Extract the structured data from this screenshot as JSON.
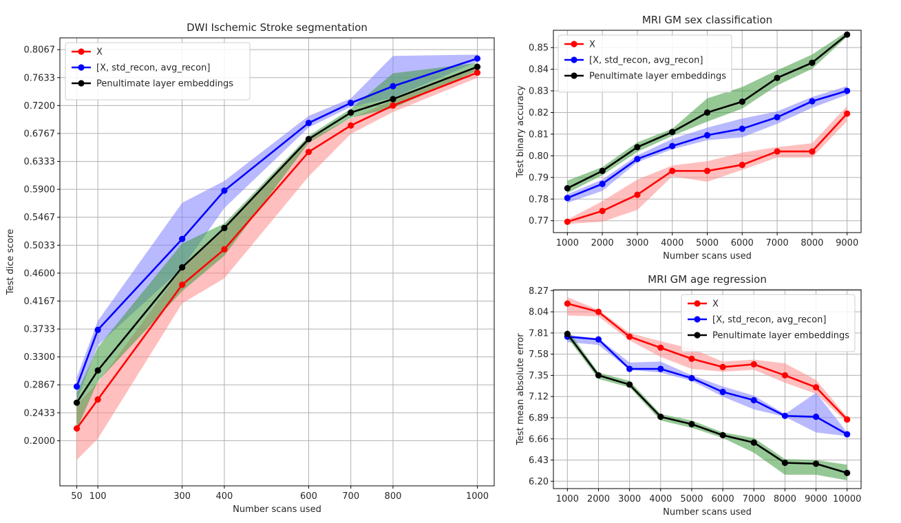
{
  "colors": {
    "X": "#ff0000",
    "std_recon": "#0000ff",
    "embeddings": "#000000",
    "band_X": "#ff8a8a",
    "band_std_recon": "#7f7fff",
    "band_embeddings": "#3f9a3f"
  },
  "chart_data": [
    {
      "type": "line",
      "title": "DWI Ischemic Stroke segmentation",
      "xlabel": "Number scans used",
      "ylabel": "Test dice score",
      "xlim": [
        10,
        1040
      ],
      "ylim": [
        0.13,
        0.825
      ],
      "xticks": [
        50,
        100,
        300,
        400,
        600,
        700,
        800,
        1000
      ],
      "xtick_labels": [
        "50",
        "100",
        "300",
        "400",
        "600",
        "700",
        "800",
        "1000"
      ],
      "yticks": [
        0.2,
        0.2433,
        0.2867,
        0.33,
        0.3733,
        0.4167,
        0.46,
        0.5033,
        0.5467,
        0.59,
        0.6333,
        0.6767,
        0.72,
        0.7633,
        0.8067
      ],
      "ytick_labels": [
        "0.2000",
        "0.2433",
        "0.2867",
        "0.3300",
        "0.3733",
        "0.4167",
        "0.4600",
        "0.5033",
        "0.5467",
        "0.5900",
        "0.6333",
        "0.6767",
        "0.7200",
        "0.7633",
        "0.8067"
      ],
      "grid": true,
      "legend": "top-left",
      "x": [
        50,
        100,
        300,
        400,
        600,
        700,
        800,
        1000
      ],
      "series": [
        {
          "name": "X",
          "color_key": "X",
          "band_key": "band_X",
          "values": [
            0.219,
            0.264,
            0.442,
            0.497,
            0.648,
            0.689,
            0.72,
            0.771
          ],
          "lower": [
            0.17,
            0.203,
            0.413,
            0.452,
            0.61,
            0.676,
            0.71,
            0.763
          ],
          "upper": [
            0.256,
            0.29,
            0.467,
            0.527,
            0.668,
            0.7,
            0.728,
            0.778
          ]
        },
        {
          "name": "[X, std_recon, avg_recon]",
          "color_key": "std_recon",
          "band_key": "band_std_recon",
          "values": [
            0.284,
            0.372,
            0.513,
            0.588,
            0.693,
            0.724,
            0.75,
            0.793
          ],
          "lower": [
            0.262,
            0.348,
            0.468,
            0.561,
            0.686,
            0.718,
            0.732,
            0.788
          ],
          "upper": [
            0.298,
            0.386,
            0.569,
            0.603,
            0.704,
            0.731,
            0.797,
            0.799
          ]
        },
        {
          "name": "Penultimate layer embeddings",
          "color_key": "embeddings",
          "band_key": "band_embeddings",
          "values": [
            0.259,
            0.309,
            0.469,
            0.53,
            0.668,
            0.709,
            0.73,
            0.78
          ],
          "lower": [
            0.218,
            0.292,
            0.432,
            0.487,
            0.662,
            0.701,
            0.716,
            0.774
          ],
          "upper": [
            0.274,
            0.345,
            0.506,
            0.537,
            0.673,
            0.715,
            0.77,
            0.786
          ]
        }
      ]
    },
    {
      "type": "line",
      "title": "MRI GM sex classification",
      "xlabel": "Number scans used",
      "ylabel": "Test binary accuracy",
      "xlim": [
        600,
        9400
      ],
      "ylim": [
        0.7645,
        0.858
      ],
      "xticks": [
        1000,
        2000,
        3000,
        4000,
        5000,
        6000,
        7000,
        8000,
        9000
      ],
      "xtick_labels": [
        "1000",
        "2000",
        "3000",
        "4000",
        "5000",
        "6000",
        "7000",
        "8000",
        "9000"
      ],
      "yticks": [
        0.77,
        0.78,
        0.79,
        0.8,
        0.81,
        0.82,
        0.83,
        0.84,
        0.85
      ],
      "ytick_labels": [
        "0.77",
        "0.78",
        "0.79",
        "0.80",
        "0.81",
        "0.82",
        "0.83",
        "0.84",
        "0.85"
      ],
      "grid": true,
      "legend": "top-left",
      "x": [
        1000,
        2000,
        3000,
        4000,
        5000,
        6000,
        7000,
        8000,
        9000
      ],
      "series": [
        {
          "name": "X",
          "color_key": "X",
          "band_key": "band_X",
          "values": [
            0.7695,
            0.7745,
            0.782,
            0.793,
            0.793,
            0.7958,
            0.802,
            0.802,
            0.8195
          ],
          "lower": [
            0.7685,
            0.7695,
            0.775,
            0.7905,
            0.788,
            0.7935,
            0.7992,
            0.7992,
            0.816
          ],
          "upper": [
            0.7705,
            0.779,
            0.789,
            0.7955,
            0.7975,
            0.8015,
            0.804,
            0.8058,
            0.823
          ]
        },
        {
          "name": "[X, std_recon, avg_recon]",
          "color_key": "std_recon",
          "band_key": "band_std_recon",
          "values": [
            0.7805,
            0.787,
            0.7985,
            0.8045,
            0.8095,
            0.8125,
            0.8178,
            0.8252,
            0.83
          ],
          "lower": [
            0.7782,
            0.7838,
            0.797,
            0.803,
            0.8072,
            0.8085,
            0.8148,
            0.8222,
            0.8282
          ],
          "upper": [
            0.7822,
            0.789,
            0.8002,
            0.8078,
            0.813,
            0.8172,
            0.8205,
            0.8272,
            0.8322
          ]
        },
        {
          "name": "Penultimate layer embeddings",
          "color_key": "embeddings",
          "band_key": "band_embeddings",
          "values": [
            0.785,
            0.793,
            0.804,
            0.811,
            0.82,
            0.825,
            0.836,
            0.843,
            0.856
          ],
          "lower": [
            0.7828,
            0.791,
            0.8018,
            0.8092,
            0.8158,
            0.8218,
            0.8325,
            0.8402,
            0.855
          ],
          "upper": [
            0.7885,
            0.7948,
            0.8062,
            0.8125,
            0.8265,
            0.8318,
            0.8395,
            0.8468,
            0.8575
          ]
        }
      ]
    },
    {
      "type": "line",
      "title": "MRI GM age regression",
      "xlabel": "Number scans used",
      "ylabel": "Test mean absolute error",
      "xlim": [
        550,
        10450
      ],
      "ylim": [
        6.12,
        8.28
      ],
      "xticks": [
        1000,
        2000,
        3000,
        4000,
        5000,
        6000,
        7000,
        8000,
        9000,
        10000
      ],
      "xtick_labels": [
        "1000",
        "2000",
        "3000",
        "4000",
        "5000",
        "6000",
        "7000",
        "8000",
        "9000",
        "10000"
      ],
      "yticks": [
        6.2,
        6.43,
        6.66,
        6.89,
        7.12,
        7.35,
        7.58,
        7.81,
        8.04,
        8.27
      ],
      "ytick_labels": [
        "6.20",
        "6.43",
        "6.66",
        "6.89",
        "7.12",
        "7.35",
        "7.58",
        "7.81",
        "8.04",
        "8.27"
      ],
      "grid": true,
      "legend": "top-right",
      "x": [
        1000,
        2000,
        3000,
        4000,
        5000,
        6000,
        7000,
        8000,
        9000,
        10000
      ],
      "series": [
        {
          "name": "X",
          "color_key": "X",
          "band_key": "band_X",
          "values": [
            8.13,
            8.04,
            7.77,
            7.65,
            7.53,
            7.44,
            7.47,
            7.35,
            7.22,
            6.87
          ],
          "lower": [
            8.0,
            7.99,
            7.73,
            7.55,
            7.42,
            7.39,
            7.41,
            7.27,
            7.15,
            6.84
          ],
          "upper": [
            8.2,
            8.06,
            7.81,
            7.72,
            7.64,
            7.5,
            7.52,
            7.48,
            7.3,
            6.9
          ]
        },
        {
          "name": "[X, std_recon, avg_recon]",
          "color_key": "std_recon",
          "band_key": "band_std_recon",
          "values": [
            7.77,
            7.74,
            7.42,
            7.42,
            7.32,
            7.17,
            7.08,
            6.91,
            6.9,
            6.71
          ],
          "lower": [
            7.71,
            7.68,
            7.41,
            7.38,
            7.29,
            7.12,
            6.98,
            6.9,
            6.73,
            6.69
          ],
          "upper": [
            7.79,
            7.75,
            7.49,
            7.5,
            7.35,
            7.23,
            7.13,
            6.93,
            7.16,
            6.73
          ]
        },
        {
          "name": "Penultimate layer embeddings",
          "color_key": "embeddings",
          "band_key": "band_embeddings",
          "values": [
            7.8,
            7.35,
            7.25,
            6.9,
            6.82,
            6.7,
            6.62,
            6.4,
            6.39,
            6.29
          ],
          "lower": [
            7.76,
            7.31,
            7.22,
            6.86,
            6.78,
            6.67,
            6.51,
            6.27,
            6.27,
            6.21
          ],
          "upper": [
            7.85,
            7.38,
            7.29,
            6.93,
            6.86,
            6.73,
            6.67,
            6.44,
            6.43,
            6.38
          ]
        }
      ]
    }
  ]
}
